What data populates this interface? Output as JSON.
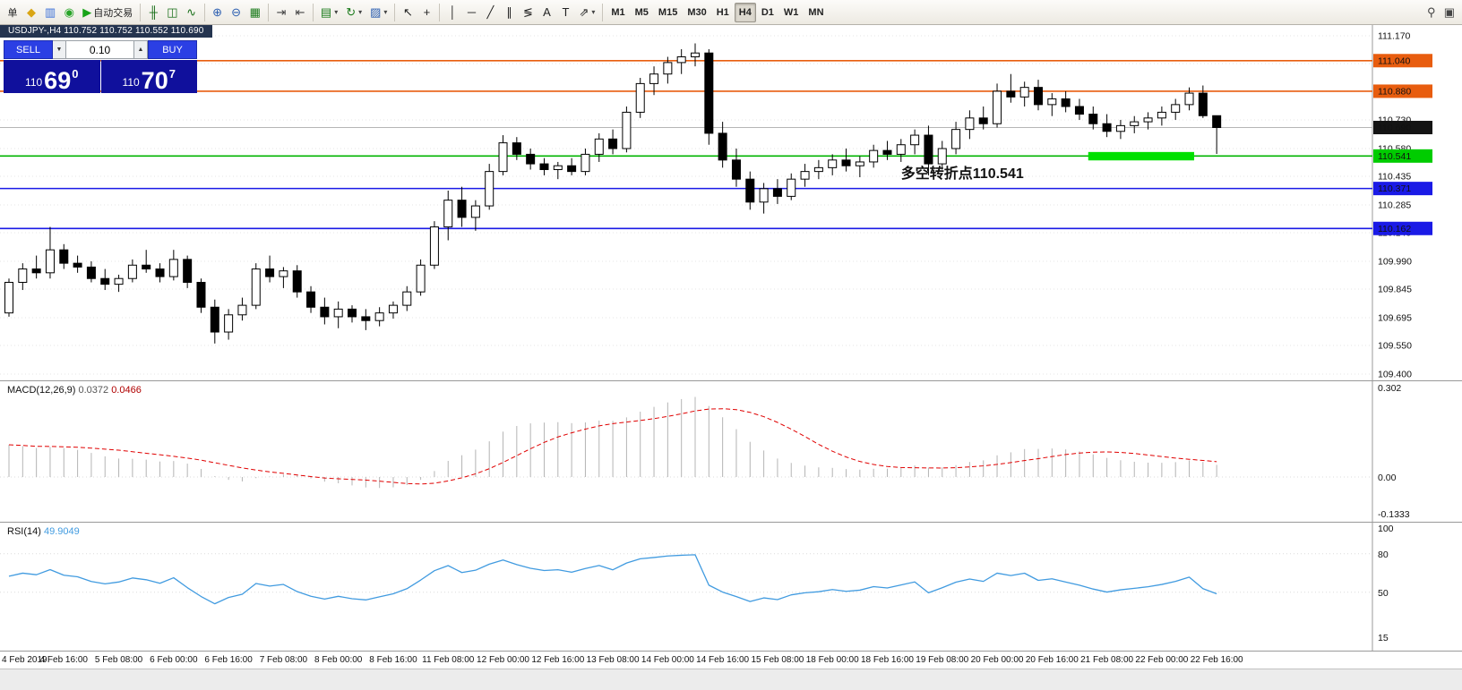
{
  "chart_title": "USDJPY-,H4  110.752 110.752 110.552 110.690",
  "trade_panel": {
    "sell_label": "SELL",
    "buy_label": "BUY",
    "lot_value": "0.10",
    "lot_down_glyph": "▼",
    "lot_up_glyph": "▲",
    "sell_price_main": "110",
    "sell_price_big": "69",
    "sell_price_sup": "0",
    "buy_price_main": "110",
    "buy_price_big": "70",
    "buy_price_sup": "7"
  },
  "toolbar": {
    "groups": [
      {
        "name": "trade",
        "items": [
          {
            "name": "order",
            "label": "单"
          },
          {
            "name": "new-order",
            "glyph": "◆",
            "color": "#d9a514"
          },
          {
            "name": "market-watch",
            "glyph": "▥",
            "color": "#3a6fd8"
          },
          {
            "name": "info",
            "glyph": "◉",
            "color": "#28a428"
          },
          {
            "name": "autotrade",
            "glyph": "▶",
            "color": "#17a317",
            "label": "自动交易"
          }
        ]
      },
      {
        "name": "chart-type",
        "items": [
          {
            "name": "bar-chart",
            "glyph": "╫",
            "color": "#176e17"
          },
          {
            "name": "candle-chart",
            "glyph": "◫",
            "color": "#176e17"
          },
          {
            "name": "line-chart",
            "glyph": "∿",
            "color": "#176e17"
          }
        ]
      },
      {
        "name": "zoom",
        "items": [
          {
            "name": "zoom-in",
            "glyph": "⊕",
            "color": "#2a5db0"
          },
          {
            "name": "zoom-out",
            "glyph": "⊖",
            "color": "#2a5db0"
          },
          {
            "name": "tile-windows",
            "glyph": "▦",
            "color": "#1a7a1a"
          }
        ]
      },
      {
        "name": "scroll",
        "items": [
          {
            "name": "auto-scroll",
            "glyph": "⇥",
            "color": "#444444"
          },
          {
            "name": "chart-shift",
            "glyph": "⇤",
            "color": "#444444"
          }
        ]
      },
      {
        "name": "objects",
        "items": [
          {
            "name": "new-chart",
            "glyph": "▤",
            "color": "#1a7a1a",
            "dropdown": true
          },
          {
            "name": "periods",
            "glyph": "↻",
            "color": "#1a7a1a",
            "dropdown": true
          },
          {
            "name": "templates",
            "glyph": "▨",
            "color": "#2a5db0",
            "dropdown": true
          }
        ]
      },
      {
        "name": "cursor",
        "items": [
          {
            "name": "cursor",
            "glyph": "↖",
            "color": "#222222"
          },
          {
            "name": "crosshair",
            "glyph": "+",
            "color": "#222222"
          }
        ]
      },
      {
        "name": "draw",
        "items": [
          {
            "name": "vertical-line",
            "glyph": "│",
            "color": "#222222"
          },
          {
            "name": "horizontal-line",
            "glyph": "─",
            "color": "#222222"
          },
          {
            "name": "trendline",
            "glyph": "╱",
            "color": "#222222"
          },
          {
            "name": "channel",
            "glyph": "∥",
            "color": "#222222"
          },
          {
            "name": "fibonacci",
            "glyph": "≶",
            "color": "#222222"
          },
          {
            "name": "text",
            "glyph": "A",
            "color": "#222222"
          },
          {
            "name": "text-label",
            "glyph": "T",
            "color": "#222222"
          },
          {
            "name": "arrows",
            "glyph": "⇗",
            "color": "#222222",
            "dropdown": true
          }
        ]
      },
      {
        "name": "timeframes",
        "items": [
          {
            "name": "timeframe-m1",
            "label": "M1"
          },
          {
            "name": "timeframe-m5",
            "label": "M5"
          },
          {
            "name": "timeframe-m15",
            "label": "M15"
          },
          {
            "name": "timeframe-m30",
            "label": "M30"
          },
          {
            "name": "timeframe-h1",
            "label": "H1"
          },
          {
            "name": "timeframe-h4",
            "label": "H4",
            "active": true
          },
          {
            "name": "timeframe-d1",
            "label": "D1"
          },
          {
            "name": "timeframe-w1",
            "label": "W1"
          },
          {
            "name": "timeframe-mn",
            "label": "MN"
          }
        ]
      }
    ],
    "right_items": [
      {
        "name": "search",
        "glyph": "⚲",
        "color": "#444444"
      },
      {
        "name": "profiles",
        "glyph": "▣",
        "color": "#444444"
      }
    ]
  },
  "chart_data": [
    {
      "type": "candlestick",
      "title": "USDJPY-,H4",
      "ylim": [
        109.4,
        111.17
      ],
      "y_axis_labels": [
        "111.170",
        "111.025",
        "110.880",
        "110.730",
        "110.580",
        "110.435",
        "110.285",
        "110.140",
        "109.990",
        "109.845",
        "109.695",
        "109.550",
        "109.400"
      ],
      "x_labels": [
        "4 Feb 2019",
        "4 Feb 16:00",
        "5 Feb 08:00",
        "6 Feb 00:00",
        "6 Feb 16:00",
        "7 Feb 08:00",
        "8 Feb 00:00",
        "8 Feb 16:00",
        "11 Feb 08:00",
        "12 Feb 00:00",
        "12 Feb 16:00",
        "13 Feb 08:00",
        "14 Feb 00:00",
        "14 Feb 16:00",
        "15 Feb 08:00",
        "18 Feb 00:00",
        "18 Feb 16:00",
        "19 Feb 08:00",
        "20 Feb 00:00",
        "20 Feb 16:00",
        "21 Feb 08:00",
        "22 Feb 00:00",
        "22 Feb 16:00"
      ],
      "x_label_candle_interval": 4,
      "current_price": 110.69,
      "levels": [
        {
          "price": 111.04,
          "label": "111.040",
          "color": "#e85d0f"
        },
        {
          "price": 110.88,
          "label": "110.880",
          "color": "#e85d0f"
        },
        {
          "price": 110.69,
          "label": "110.690",
          "color": "#b6b6b6",
          "badge_bg": "#141414",
          "is_current": true
        },
        {
          "price": 110.541,
          "label": "110.541",
          "color": "#00b400",
          "badge_bg": "#00cc00",
          "badge_text": "#003300"
        },
        {
          "price": 110.371,
          "label": "110.371",
          "color": "#1a1ae6"
        },
        {
          "price": 110.162,
          "label": "110.162",
          "color": "#1a1ae6"
        }
      ],
      "support_zone": {
        "start_index": 79,
        "end_index": 86,
        "top_price": 110.562,
        "bottom_price": 110.518,
        "color": "#00e000"
      },
      "annotation": {
        "text": "多空转折点110.541",
        "color": "#00cc00",
        "candle_index": 65,
        "price": 110.425
      },
      "ohlc": [
        [
          109.72,
          109.9,
          109.7,
          109.88
        ],
        [
          109.88,
          109.98,
          109.84,
          109.95
        ],
        [
          109.95,
          110.02,
          109.9,
          109.93
        ],
        [
          109.93,
          110.17,
          109.9,
          110.05
        ],
        [
          110.05,
          110.08,
          109.95,
          109.98
        ],
        [
          109.98,
          110.02,
          109.93,
          109.96
        ],
        [
          109.96,
          109.99,
          109.88,
          109.9
        ],
        [
          109.9,
          109.95,
          109.84,
          109.87
        ],
        [
          109.87,
          109.92,
          109.83,
          109.9
        ],
        [
          109.9,
          110.0,
          109.88,
          109.97
        ],
        [
          109.97,
          110.05,
          109.93,
          109.95
        ],
        [
          109.95,
          109.98,
          109.88,
          109.91
        ],
        [
          109.91,
          110.05,
          109.89,
          110.0
        ],
        [
          110.0,
          110.02,
          109.85,
          109.88
        ],
        [
          109.88,
          109.9,
          109.72,
          109.75
        ],
        [
          109.75,
          109.79,
          109.56,
          109.62
        ],
        [
          109.62,
          109.74,
          109.58,
          109.71
        ],
        [
          109.71,
          109.8,
          109.68,
          109.76
        ],
        [
          109.76,
          109.98,
          109.74,
          109.95
        ],
        [
          109.95,
          110.02,
          109.88,
          109.91
        ],
        [
          109.91,
          109.96,
          109.85,
          109.94
        ],
        [
          109.94,
          109.97,
          109.8,
          109.83
        ],
        [
          109.83,
          109.86,
          109.72,
          109.75
        ],
        [
          109.75,
          109.8,
          109.66,
          109.7
        ],
        [
          109.7,
          109.78,
          109.64,
          109.74
        ],
        [
          109.74,
          109.76,
          109.67,
          109.7
        ],
        [
          109.7,
          109.74,
          109.63,
          109.68
        ],
        [
          109.68,
          109.75,
          109.65,
          109.72
        ],
        [
          109.72,
          109.78,
          109.69,
          109.76
        ],
        [
          109.76,
          109.86,
          109.73,
          109.83
        ],
        [
          109.83,
          110.0,
          109.81,
          109.97
        ],
        [
          109.97,
          110.2,
          109.95,
          110.17
        ],
        [
          110.17,
          110.36,
          110.1,
          110.31
        ],
        [
          110.31,
          110.38,
          110.17,
          110.22
        ],
        [
          110.22,
          110.31,
          110.15,
          110.28
        ],
        [
          110.28,
          110.5,
          110.26,
          110.46
        ],
        [
          110.46,
          110.65,
          110.44,
          110.61
        ],
        [
          110.61,
          110.64,
          110.52,
          110.55
        ],
        [
          110.55,
          110.58,
          110.47,
          110.5
        ],
        [
          110.5,
          110.53,
          110.44,
          110.47
        ],
        [
          110.47,
          110.51,
          110.42,
          110.49
        ],
        [
          110.49,
          110.53,
          110.44,
          110.46
        ],
        [
          110.46,
          110.58,
          110.44,
          110.55
        ],
        [
          110.55,
          110.66,
          110.51,
          110.63
        ],
        [
          110.63,
          110.68,
          110.55,
          110.58
        ],
        [
          110.58,
          110.8,
          110.56,
          110.77
        ],
        [
          110.77,
          110.95,
          110.74,
          110.92
        ],
        [
          110.92,
          111.01,
          110.86,
          110.97
        ],
        [
          110.97,
          111.06,
          110.92,
          111.03
        ],
        [
          111.03,
          111.1,
          110.97,
          111.06
        ],
        [
          111.06,
          111.13,
          111.01,
          111.08
        ],
        [
          111.08,
          111.1,
          110.6,
          110.66
        ],
        [
          110.66,
          110.72,
          110.48,
          110.52
        ],
        [
          110.52,
          110.58,
          110.38,
          110.42
        ],
        [
          110.42,
          110.46,
          110.26,
          110.3
        ],
        [
          110.3,
          110.4,
          110.24,
          110.37
        ],
        [
          110.37,
          110.42,
          110.29,
          110.33
        ],
        [
          110.33,
          110.45,
          110.31,
          110.42
        ],
        [
          110.42,
          110.5,
          110.38,
          110.46
        ],
        [
          110.46,
          110.52,
          110.42,
          110.48
        ],
        [
          110.48,
          110.55,
          110.44,
          110.52
        ],
        [
          110.52,
          110.58,
          110.46,
          110.49
        ],
        [
          110.49,
          110.54,
          110.43,
          110.51
        ],
        [
          110.51,
          110.6,
          110.48,
          110.57
        ],
        [
          110.57,
          110.62,
          110.52,
          110.55
        ],
        [
          110.55,
          110.63,
          110.51,
          110.6
        ],
        [
          110.6,
          110.68,
          110.55,
          110.65
        ],
        [
          110.65,
          110.7,
          110.44,
          110.5
        ],
        [
          110.5,
          110.62,
          110.47,
          110.58
        ],
        [
          110.58,
          110.72,
          110.55,
          110.68
        ],
        [
          110.68,
          110.78,
          110.63,
          110.74
        ],
        [
          110.74,
          110.8,
          110.68,
          110.71
        ],
        [
          110.71,
          110.92,
          110.69,
          110.88
        ],
        [
          110.88,
          110.97,
          110.82,
          110.85
        ],
        [
          110.85,
          110.93,
          110.8,
          110.9
        ],
        [
          110.9,
          110.94,
          110.78,
          110.81
        ],
        [
          110.81,
          110.87,
          110.75,
          110.84
        ],
        [
          110.84,
          110.88,
          110.77,
          110.8
        ],
        [
          110.8,
          110.84,
          110.73,
          110.76
        ],
        [
          110.76,
          110.8,
          110.68,
          110.71
        ],
        [
          110.71,
          110.76,
          110.64,
          110.67
        ],
        [
          110.67,
          110.73,
          110.63,
          110.7
        ],
        [
          110.7,
          110.75,
          110.66,
          110.72
        ],
        [
          110.72,
          110.77,
          110.68,
          110.74
        ],
        [
          110.74,
          110.8,
          110.7,
          110.77
        ],
        [
          110.77,
          110.84,
          110.73,
          110.81
        ],
        [
          110.81,
          110.9,
          110.78,
          110.87
        ],
        [
          110.87,
          110.91,
          110.74,
          110.752
        ],
        [
          110.752,
          110.752,
          110.552,
          110.69
        ]
      ]
    },
    {
      "type": "bar",
      "name": "MACD(12,26,9)",
      "label_values": {
        "main": "0.0372",
        "signal": "0.0466"
      },
      "y_axis_labels": [
        "0.302",
        "0.00",
        "-0.1333"
      ],
      "ylim": [
        -0.1333,
        0.302
      ],
      "params": {
        "fast": 12,
        "slow": 26,
        "signal": 9
      },
      "derived": "computed from candlestick closes",
      "histogram_color": "#b4b4b4",
      "signal_color": "#e00000"
    },
    {
      "type": "line",
      "name": "RSI(14)",
      "label_value": "49.9049",
      "y_axis_labels": [
        "100",
        "80",
        "50",
        "15"
      ],
      "ylim": [
        15,
        100
      ],
      "levels": [
        80,
        50
      ],
      "line_color": "#419be0",
      "derived": "computed from candlestick closes"
    }
  ]
}
